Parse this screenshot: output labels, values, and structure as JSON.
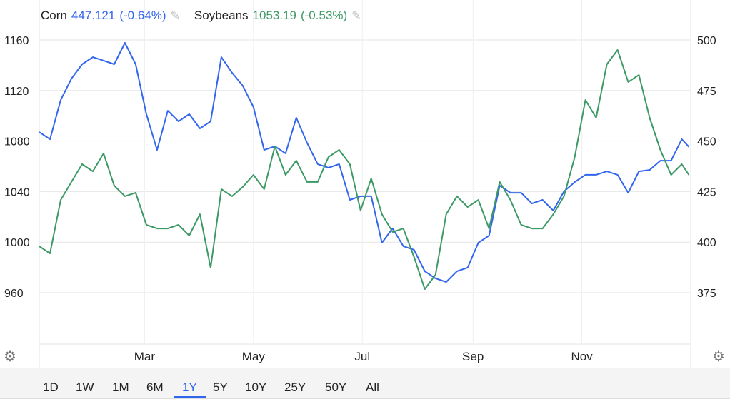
{
  "legend": {
    "corn": {
      "name": "Corn",
      "value": "447.121",
      "change": "(-0.64%)",
      "color": "#3366ee"
    },
    "soy": {
      "name": "Soybeans",
      "value": "1053.19",
      "change": "(-0.53%)",
      "color": "#3d9966"
    }
  },
  "ranges": [
    "1D",
    "1W",
    "1M",
    "6M",
    "1Y",
    "5Y",
    "10Y",
    "25Y",
    "50Y",
    "All"
  ],
  "active_range": "1Y",
  "chart_data": {
    "type": "line",
    "x": [
      "01-01",
      "01-07",
      "01-13",
      "01-19",
      "01-25",
      "01-31",
      "02-06",
      "02-12",
      "02-18",
      "02-24",
      "03-02",
      "03-08",
      "03-14",
      "03-20",
      "03-26",
      "04-01",
      "04-07",
      "04-13",
      "04-19",
      "04-25",
      "05-01",
      "05-07",
      "05-13",
      "05-19",
      "05-25",
      "05-31",
      "06-06",
      "06-12",
      "06-18",
      "06-24",
      "06-30",
      "07-06",
      "07-12",
      "07-18",
      "07-24",
      "07-30",
      "08-05",
      "08-11",
      "08-17",
      "08-23",
      "08-29",
      "09-04",
      "09-10",
      "09-16",
      "09-22",
      "09-28",
      "10-04",
      "10-10",
      "10-16",
      "10-22",
      "10-28",
      "11-03",
      "11-09",
      "11-15",
      "11-21",
      "11-27",
      "12-03",
      "12-09",
      "12-15",
      "12-21",
      "12-27",
      "12-31"
    ],
    "xticks": [
      {
        "label": "Mar",
        "date": "03-01"
      },
      {
        "label": "May",
        "date": "05-01"
      },
      {
        "label": "Jul",
        "date": "07-01"
      },
      {
        "label": "Sep",
        "date": "09-01"
      },
      {
        "label": "Nov",
        "date": "11-01"
      }
    ],
    "left_axis": {
      "ticks": [
        960,
        1000,
        1040,
        1080,
        1120,
        1160
      ],
      "range": [
        920,
        1180
      ]
    },
    "right_axis": {
      "ticks": [
        375,
        400,
        425,
        450,
        475,
        500
      ],
      "range": [
        350,
        511
      ]
    },
    "grid": true,
    "series": [
      {
        "name": "Corn",
        "axis": "right",
        "color": "#3366ee",
        "values": [
          454.4,
          450.9,
          470.3,
          480.9,
          488.0,
          491.5,
          489.8,
          488.0,
          498.6,
          488.0,
          463.3,
          445.6,
          465.0,
          459.7,
          463.3,
          456.2,
          459.7,
          491.5,
          483.8,
          477.4,
          466.8,
          445.6,
          447.4,
          443.9,
          461.5,
          449.2,
          438.6,
          436.8,
          438.6,
          420.9,
          422.7,
          422.7,
          399.7,
          406.8,
          398.0,
          396.2,
          385.6,
          382.1,
          380.3,
          385.6,
          387.4,
          399.7,
          403.2,
          428.0,
          424.4,
          424.4,
          419.1,
          420.9,
          415.6,
          425.1,
          429.7,
          433.3,
          433.3,
          435.0,
          433.3,
          424.4,
          435.0,
          435.7,
          440.3,
          440.3,
          450.9,
          447.121
        ]
      },
      {
        "name": "Soybeans",
        "axis": "left",
        "color": "#3d9966",
        "values": [
          996.7,
          991.1,
          1033.4,
          1047.6,
          1061.7,
          1056.0,
          1070.2,
          1044.7,
          1036.3,
          1039.1,
          1013.7,
          1010.8,
          1010.8,
          1013.7,
          1005.2,
          1022.1,
          979.8,
          1041.9,
          1036.3,
          1043.6,
          1053.2,
          1041.9,
          1075.8,
          1053.2,
          1064.5,
          1047.6,
          1047.6,
          1067.3,
          1073.0,
          1061.7,
          1025.0,
          1050.4,
          1022.1,
          1008.0,
          1010.8,
          988.2,
          962.8,
          974.1,
          1022.1,
          1036.3,
          1027.8,
          1033.4,
          1010.8,
          1047.6,
          1033.4,
          1013.7,
          1010.8,
          1010.8,
          1022.1,
          1036.3,
          1067.3,
          1112.5,
          1098.4,
          1140.8,
          1152.1,
          1126.7,
          1132.3,
          1098.4,
          1073.0,
          1053.2,
          1061.7,
          1053.19
        ]
      }
    ]
  }
}
